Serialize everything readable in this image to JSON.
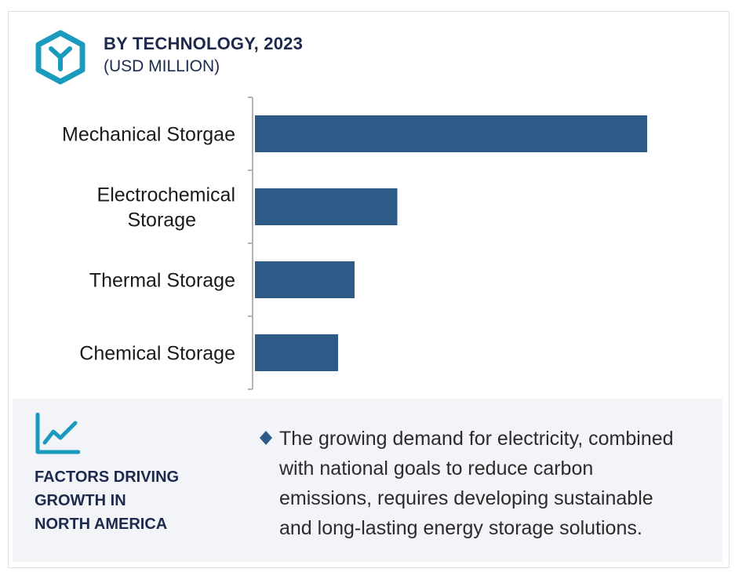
{
  "header": {
    "title": "BY TECHNOLOGY, 2023",
    "subtitle": "(USD MILLION)",
    "icon": "hexagon-y-logo-icon"
  },
  "chart_data": {
    "type": "bar",
    "orientation": "horizontal",
    "title": "BY TECHNOLOGY, 2023",
    "subtitle": "(USD MILLION)",
    "categories": [
      [
        "Mechanical Storgae"
      ],
      [
        "Electrochemical",
        "Storage"
      ],
      [
        "Thermal Storage"
      ],
      [
        "Chemical Storage"
      ]
    ],
    "values": [
      100,
      36.3,
      25.4,
      21.2
    ],
    "xlim": [
      0,
      100
    ],
    "grid": false,
    "value_axis_shown": false,
    "colors": {
      "bar": "#2e5a88",
      "axis": "#b5b5b5"
    }
  },
  "factors": {
    "icon": "line-chart-icon",
    "heading_lines": [
      "FACTORS DRIVING",
      "GROWTH IN",
      "NORTH AMERICA"
    ],
    "bullet_icon": "diamond-bullet-icon",
    "bullet_lines": [
      "The growing demand for electricity, combined",
      "with national goals to reduce carbon",
      "emissions, requires developing sustainable",
      "and long-lasting energy storage solutions."
    ],
    "colors": {
      "icon": "#1a9bbd",
      "panel_bg": "#f2f4f8",
      "heading": "#1d2a4d",
      "bullet": "#2e5a88"
    }
  }
}
